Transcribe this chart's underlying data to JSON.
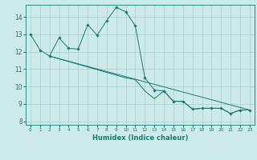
{
  "title": "",
  "xlabel": "Humidex (Indice chaleur)",
  "bg_color": "#cceaea",
  "line_color": "#1a7a6e",
  "grid_color": "#aacccc",
  "xlim": [
    -0.5,
    23.5
  ],
  "ylim": [
    7.8,
    14.7
  ],
  "xticks": [
    0,
    1,
    2,
    3,
    4,
    5,
    6,
    7,
    8,
    9,
    10,
    11,
    12,
    13,
    14,
    15,
    16,
    17,
    18,
    19,
    20,
    21,
    22,
    23
  ],
  "yticks": [
    8,
    9,
    10,
    11,
    12,
    13,
    14
  ],
  "curve1_x": [
    0,
    1,
    2,
    3,
    4,
    5,
    6,
    7,
    8,
    9,
    10,
    11,
    12,
    13,
    14,
    15,
    16,
    17,
    18,
    19,
    20,
    21,
    22,
    23
  ],
  "curve1_y": [
    13.0,
    12.1,
    11.75,
    12.8,
    12.2,
    12.15,
    13.55,
    12.95,
    13.8,
    14.55,
    14.3,
    13.5,
    10.5,
    9.8,
    9.75,
    9.15,
    9.15,
    8.7,
    8.75,
    8.75,
    8.75,
    8.45,
    8.65,
    8.65
  ],
  "curve2_x": [
    2,
    10,
    11,
    12,
    13,
    14,
    15,
    16,
    17,
    18,
    19,
    20,
    21,
    22,
    23
  ],
  "curve2_y": [
    11.75,
    10.5,
    10.4,
    9.75,
    9.3,
    9.75,
    9.15,
    9.15,
    8.7,
    8.75,
    8.75,
    8.75,
    8.45,
    8.65,
    8.65
  ],
  "curve3_x": [
    2,
    23
  ],
  "curve3_y": [
    11.75,
    8.65
  ]
}
